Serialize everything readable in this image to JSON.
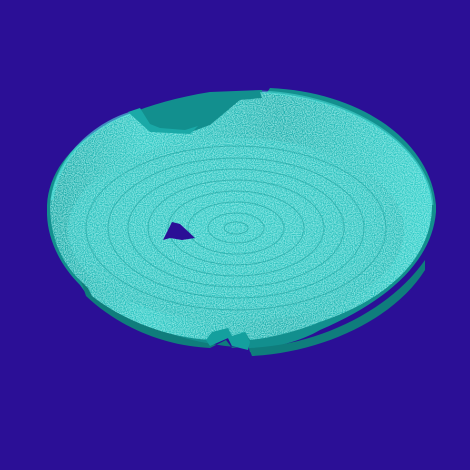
{
  "scene": {
    "subject": "dish",
    "colors": {
      "background": "#2b0f96",
      "surface_base": "#2ec7c4",
      "surface_light": "#5fe6df",
      "surface_mid": "#1fb4b2",
      "surface_dark": "#128f8e",
      "rim_shadow": "#0f7d7c",
      "hole": "#2b0f96"
    }
  }
}
